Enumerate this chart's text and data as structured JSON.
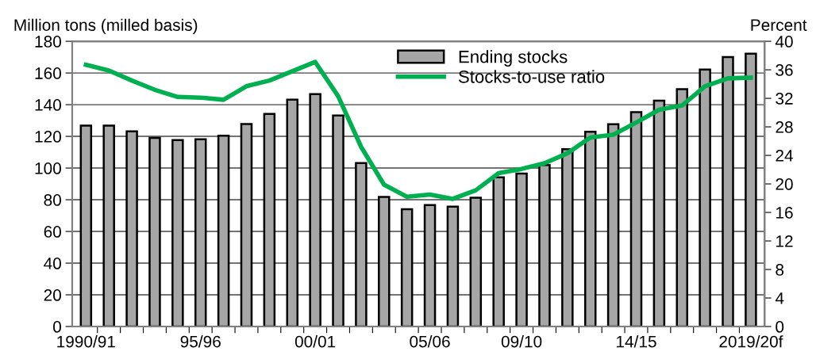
{
  "chart_data": {
    "type": "bar",
    "ylabel": "Million tons (milled basis)",
    "y2label": "Percent",
    "categories": [
      "1990/91",
      null,
      null,
      null,
      null,
      "95/96",
      null,
      null,
      null,
      null,
      "00/01",
      null,
      null,
      null,
      null,
      "05/06",
      null,
      null,
      null,
      "09/10",
      null,
      null,
      null,
      null,
      "14/15",
      null,
      null,
      null,
      null,
      "2019/20f"
    ],
    "series": [
      {
        "name": "Ending stocks",
        "color": "#a6a6a6",
        "values": [
          126.8,
          126.8,
          123.2,
          119,
          117.7,
          118.2,
          120.4,
          127.8,
          134.2,
          143.2,
          146.7,
          133.1,
          103.1,
          81.8,
          74,
          76.6,
          75.6,
          81.3,
          94.2,
          96.5,
          101.9,
          111.9,
          122.9,
          127.7,
          135.3,
          142.5,
          149.8,
          162.2,
          170,
          172.2
        ]
      },
      {
        "name": "Stocks-to-use ratio",
        "type": "line",
        "axis": "y2",
        "color": "#00b050",
        "values": [
          36.7,
          35.9,
          34.5,
          33.2,
          32.2,
          32.1,
          31.8,
          33.7,
          34.5,
          35.8,
          37.1,
          32.3,
          25.2,
          19.9,
          18.2,
          18.5,
          17.9,
          19.1,
          21.5,
          22.1,
          22.9,
          24.3,
          26.5,
          26.9,
          28.6,
          30.4,
          31.0,
          33.7,
          34.8,
          34.9
        ]
      }
    ],
    "ylim": [
      0,
      180
    ],
    "yticks": [
      0,
      20,
      40,
      60,
      80,
      100,
      120,
      140,
      160,
      180
    ],
    "y2lim": [
      0,
      40
    ],
    "y2ticks": [
      0,
      4,
      8,
      12,
      16,
      20,
      24,
      28,
      32,
      36,
      40
    ],
    "grid": "y",
    "legend": "top",
    "marker": "none",
    "line_style": "solid"
  }
}
